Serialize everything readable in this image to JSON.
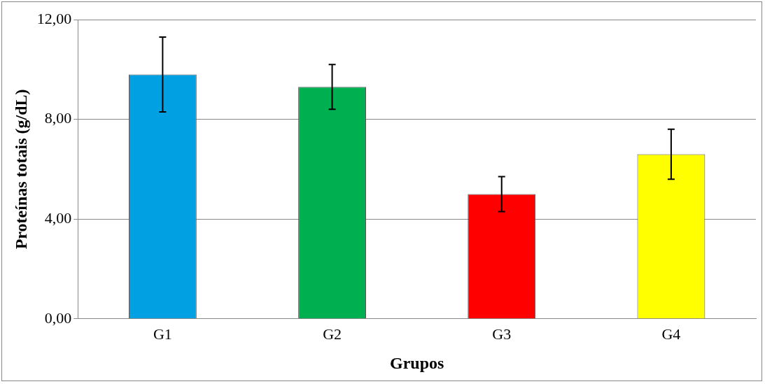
{
  "chart_data": {
    "type": "bar",
    "xlabel": "Grupos",
    "ylabel": "Proteínas totais (g/dL)",
    "categories": [
      "G1",
      "G2",
      "G3",
      "G4"
    ],
    "values": [
      9.8,
      9.3,
      5.0,
      6.6
    ],
    "errors": [
      1.5,
      0.9,
      0.7,
      1.0
    ],
    "colors": [
      "#00a0e3",
      "#00b050",
      "#ff0000",
      "#ffff00"
    ],
    "ylim": [
      0,
      12
    ],
    "yticks": [
      {
        "value": 0,
        "label": "0,00"
      },
      {
        "value": 4,
        "label": "4,00"
      },
      {
        "value": 8,
        "label": "8,00"
      },
      {
        "value": 12,
        "label": "12,00"
      }
    ],
    "grid": "y",
    "legend": false
  }
}
